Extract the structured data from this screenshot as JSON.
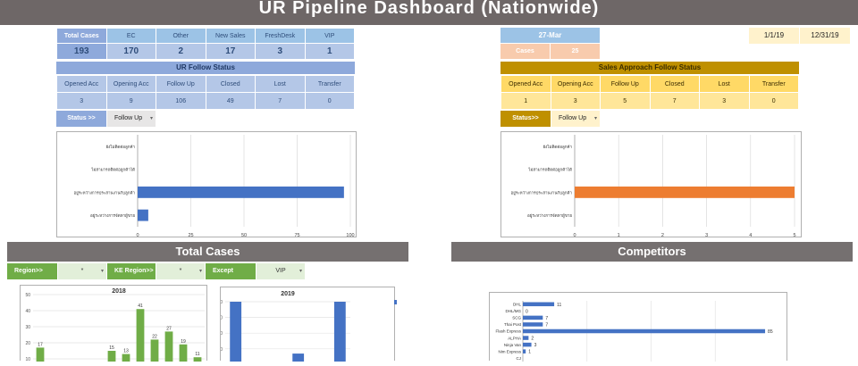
{
  "title": "UR Pipeline Dashboard (Nationwide)",
  "summary": {
    "headers": [
      "Total Cases",
      "EC",
      "Other",
      "New Sales",
      "FreshDesk",
      "VIP"
    ],
    "values": [
      "193",
      "170",
      "2",
      "17",
      "3",
      "1"
    ]
  },
  "date_box": {
    "date": "27-Mar",
    "cases_label": "Cases",
    "cases_value": "25"
  },
  "range": {
    "from": "1/1/19",
    "to": "12/31/19"
  },
  "ur_follow": {
    "title": "UR Follow Status",
    "headers": [
      "Opened Acc",
      "Opening Acc",
      "Follow Up",
      "Closed",
      "Lost",
      "Transfer"
    ],
    "values": [
      "3",
      "9",
      "106",
      "49",
      "7",
      "0"
    ],
    "status_label": "Status >>",
    "status_value": "Follow Up"
  },
  "sales_follow": {
    "title": "Sales Approach Follow Status",
    "headers": [
      "Opened Acc",
      "Opening Acc",
      "Follow Up",
      "Closed",
      "Lost",
      "Transfer"
    ],
    "values": [
      "1",
      "3",
      "5",
      "7",
      "3",
      "0"
    ],
    "status_label": "Status>>",
    "status_value": "Follow Up"
  },
  "total_cases_title": "Total Cases",
  "competitors_title": "Competitors",
  "filters": {
    "region_label": "Region>>",
    "region_value": "*",
    "ke_label": "KE Region>>",
    "ke_value": "*",
    "except_label": "Except",
    "except_value": "VIP"
  },
  "colors": {
    "blue": "#4472c4",
    "orange": "#ed7d31",
    "green": "#70ad47",
    "gold": "#bf9000"
  },
  "chart_data": [
    {
      "type": "bar",
      "orientation": "horizontal",
      "name": "ur-follow-chart",
      "categories": [
        "ยังไม่ติดต่อลูกค้า",
        "ไม่สามารถติดต่อลูกค้าได้",
        "อยู่ระหว่างการประสานงานกับลูกค้า",
        "อยู่ระหว่างการจัดหาผู้ขาย"
      ],
      "values": [
        0,
        0,
        97,
        5
      ],
      "xticks": [
        "0",
        "25",
        "50",
        "75",
        "100"
      ],
      "xlim": [
        0,
        100
      ]
    },
    {
      "type": "bar",
      "orientation": "horizontal",
      "name": "sales-follow-chart",
      "categories": [
        "ยังไม่ติดต่อลูกค้า",
        "ไม่สามารถติดต่อลูกค้าได้",
        "อยู่ระหว่างการประสานงานกับลูกค้า",
        "อยู่ระหว่างการจัดหาผู้ขาย"
      ],
      "values": [
        0,
        0,
        5,
        0
      ],
      "xticks": [
        "0",
        "1",
        "2",
        "3",
        "4",
        "5"
      ],
      "xlim": [
        0,
        5
      ]
    },
    {
      "type": "bar",
      "name": "chart-2018",
      "title": "2018",
      "values": [
        17,
        0,
        0,
        0,
        0,
        15,
        13,
        41,
        22,
        27,
        19,
        11
      ],
      "labels": [
        "17",
        "",
        "",
        "",
        "",
        "15",
        "13",
        "41",
        "22",
        "27",
        "19",
        "11"
      ],
      "yticks": [
        "50",
        "40",
        "30",
        "20",
        "10"
      ],
      "ylim": [
        0,
        50
      ]
    },
    {
      "type": "bar",
      "name": "chart-2019",
      "title": "2019",
      "values": [
        50,
        0,
        0,
        17,
        0,
        50
      ],
      "yticks": [
        "50",
        "40",
        "30",
        "20",
        "10"
      ],
      "ylim": [
        0,
        50
      ]
    },
    {
      "type": "bar",
      "orientation": "horizontal",
      "name": "competitors-chart",
      "categories": [
        "DHL",
        "DHL/MG",
        "SCG",
        "Thai Post",
        "Flash Express",
        "ALPHA",
        "Ninja Van",
        "Nim Express",
        "CJ"
      ],
      "values": [
        11,
        0,
        7,
        7,
        85,
        2,
        3,
        1,
        0
      ],
      "labels": [
        "11",
        "0",
        "7",
        "7",
        "85",
        "2",
        "3",
        "1",
        ""
      ],
      "xlim": [
        0,
        90
      ]
    }
  ]
}
